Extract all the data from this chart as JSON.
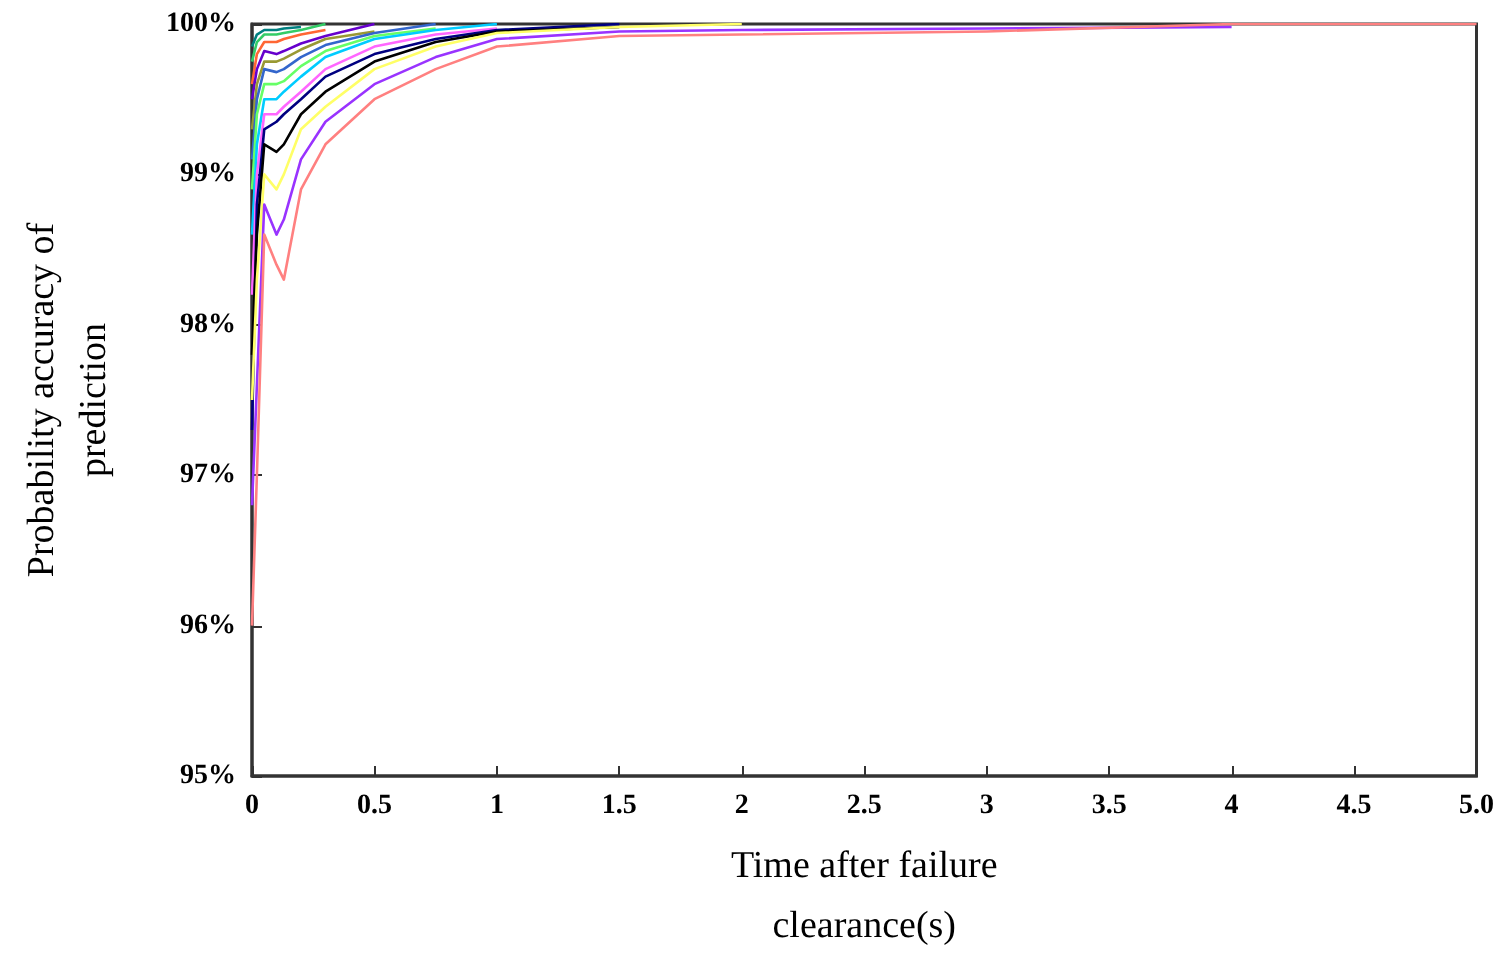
{
  "chart_data": {
    "type": "line",
    "xlabel": "Time after failure\nclearance(s)",
    "ylabel": "Probability accuracy of\nprediction",
    "x": [
      0,
      0.02,
      0.05,
      0.1,
      0.13,
      0.2,
      0.3,
      0.5,
      0.75,
      1,
      1.5,
      2,
      3,
      4,
      5
    ],
    "series": [
      {
        "color": "#ff8080",
        "values": [
          96.0,
          97.0,
          98.6,
          98.4,
          98.3,
          98.9,
          99.2,
          99.5,
          99.7,
          99.85,
          99.92,
          99.93,
          99.95,
          100,
          100
        ]
      },
      {
        "color": "#9933ff",
        "values": [
          96.8,
          97.6,
          98.8,
          98.6,
          98.7,
          99.1,
          99.35,
          99.6,
          99.78,
          99.9,
          99.95,
          99.96,
          99.97,
          99.98,
          null
        ]
      },
      {
        "color": "#ffff66",
        "values": [
          97.5,
          98.3,
          99.0,
          98.9,
          99.0,
          99.3,
          99.45,
          99.7,
          99.85,
          99.94,
          99.98,
          100,
          null,
          null,
          null
        ]
      },
      {
        "color": "#000000",
        "values": [
          97.8,
          98.6,
          99.2,
          99.15,
          99.2,
          99.4,
          99.55,
          99.75,
          99.88,
          99.95,
          99.98,
          null,
          null,
          null,
          null
        ]
      },
      {
        "color": "#000080",
        "values": [
          97.3,
          98.8,
          99.3,
          99.35,
          99.4,
          99.5,
          99.65,
          99.8,
          99.9,
          99.96,
          100,
          null,
          null,
          null,
          null
        ]
      },
      {
        "color": "#ff66ff",
        "values": [
          98.2,
          99.0,
          99.4,
          99.4,
          99.45,
          99.55,
          99.7,
          99.85,
          99.93,
          99.97,
          null,
          null,
          null,
          null,
          null
        ]
      },
      {
        "color": "#00ccff",
        "values": [
          98.6,
          99.2,
          99.5,
          99.5,
          99.55,
          99.65,
          99.78,
          99.9,
          99.96,
          100,
          null,
          null,
          null,
          null,
          null
        ]
      },
      {
        "color": "#66ff66",
        "values": [
          98.9,
          99.4,
          99.6,
          99.6,
          99.62,
          99.72,
          99.82,
          99.92,
          99.97,
          null,
          null,
          null,
          null,
          null,
          null
        ]
      },
      {
        "color": "#3366cc",
        "values": [
          99.1,
          99.5,
          99.7,
          99.68,
          99.7,
          99.78,
          99.86,
          99.94,
          100,
          null,
          null,
          null,
          null,
          null,
          null
        ]
      },
      {
        "color": "#999933",
        "values": [
          99.3,
          99.6,
          99.75,
          99.75,
          99.77,
          99.83,
          99.9,
          99.95,
          null,
          null,
          null,
          null,
          null,
          null,
          null
        ]
      },
      {
        "color": "#6600cc",
        "values": [
          99.5,
          99.7,
          99.82,
          99.8,
          99.82,
          99.87,
          99.92,
          100,
          null,
          null,
          null,
          null,
          null,
          null,
          null
        ]
      },
      {
        "color": "#ff6633",
        "values": [
          99.6,
          99.8,
          99.88,
          99.88,
          99.9,
          99.93,
          99.96,
          null,
          null,
          null,
          null,
          null,
          null,
          null,
          null
        ]
      },
      {
        "color": "#33cc66",
        "values": [
          99.75,
          99.88,
          99.93,
          99.93,
          99.94,
          99.96,
          100,
          null,
          null,
          null,
          null,
          null,
          null,
          null,
          null
        ]
      },
      {
        "color": "#008080",
        "values": [
          99.85,
          99.93,
          99.96,
          99.96,
          99.97,
          99.98,
          null,
          null,
          null,
          null,
          null,
          null,
          null,
          null,
          null
        ]
      }
    ],
    "xlim": [
      0,
      5
    ],
    "xticks": [
      0,
      0.5,
      1,
      1.5,
      2,
      2.5,
      3,
      3.5,
      4,
      4.5,
      {
        "value": 5,
        "label": "5.0"
      }
    ],
    "ylim": [
      95,
      100
    ],
    "yticks": [
      {
        "value": 95,
        "label": "95%"
      },
      {
        "value": 96,
        "label": "96%"
      },
      {
        "value": 97,
        "label": "97%"
      },
      {
        "value": 98,
        "label": "98%"
      },
      {
        "value": 99,
        "label": "99%"
      },
      {
        "value": 100,
        "label": "100%"
      }
    ],
    "marker": "none",
    "line_style": "solid"
  }
}
